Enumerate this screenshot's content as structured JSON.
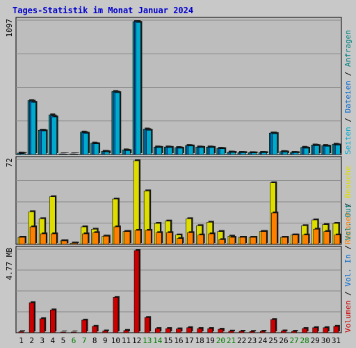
{
  "title": "Tages-Statistik im Monat Januar 2024",
  "colors": {
    "background": "#c8c8c8",
    "plot_bg": "#bdbdbd",
    "title": "#0000cc",
    "anfragen": "#008080",
    "dateien": "#0066cc",
    "seiten": "#00aacc",
    "besuche": "#dddd00",
    "rechner": "#ff8000",
    "vol_out": "#008080",
    "vol_in": "#0066cc",
    "volumen": "#cc0000",
    "weekend_label": "#008000",
    "weekday_label": "#000000"
  },
  "chart_data": [
    {
      "type": "bar",
      "panel": "requests",
      "ymax_label": "1097",
      "ylim": [
        0,
        1097
      ],
      "categories": [
        "1",
        "2",
        "3",
        "4",
        "5",
        "6",
        "7",
        "8",
        "9",
        "10",
        "11",
        "12",
        "13",
        "14",
        "15",
        "16",
        "17",
        "18",
        "19",
        "20",
        "21",
        "22",
        "23",
        "24",
        "25",
        "26",
        "27",
        "28",
        "29",
        "30",
        "31"
      ],
      "weekend_days": [
        "6",
        "7",
        "13",
        "14",
        "20",
        "21",
        "27",
        "28"
      ],
      "series": [
        {
          "name": "Anfragen",
          "values": [
            12,
            445,
            200,
            327,
            5,
            5,
            185,
            94,
            26,
            520,
            38,
            1097,
            210,
            62,
            62,
            57,
            74,
            62,
            62,
            51,
            20,
            17,
            15,
            17,
            177,
            24,
            17,
            59,
            78,
            74,
            85
          ]
        },
        {
          "name": "Dateien",
          "values": [
            10,
            440,
            200,
            318,
            5,
            5,
            180,
            90,
            25,
            515,
            35,
            1097,
            205,
            60,
            60,
            55,
            72,
            60,
            60,
            50,
            19,
            16,
            14,
            16,
            177,
            23,
            16,
            55,
            75,
            70,
            80
          ]
        },
        {
          "name": "Seiten",
          "values": [
            8,
            430,
            195,
            310,
            4,
            4,
            175,
            88,
            22,
            510,
            32,
            1090,
            200,
            58,
            58,
            52,
            70,
            58,
            58,
            48,
            17,
            15,
            13,
            15,
            172,
            20,
            15,
            52,
            73,
            68,
            78
          ]
        }
      ],
      "legend": [
        "Anfragen",
        "Dateien",
        "Seiten"
      ]
    },
    {
      "type": "bar",
      "panel": "visits",
      "ymax_label": "72",
      "ylim": [
        0,
        72
      ],
      "categories": [
        "1",
        "2",
        "3",
        "4",
        "5",
        "6",
        "7",
        "8",
        "9",
        "10",
        "11",
        "12",
        "13",
        "14",
        "15",
        "16",
        "17",
        "18",
        "19",
        "20",
        "21",
        "22",
        "23",
        "24",
        "25",
        "26",
        "27",
        "28",
        "29",
        "30",
        "31"
      ],
      "series": [
        {
          "name": "Besuche",
          "values": [
            6,
            28,
            22,
            41,
            3,
            1,
            15,
            13,
            7,
            39,
            11,
            72,
            46,
            18,
            20,
            8,
            22,
            16,
            19,
            11,
            7,
            6,
            6,
            11,
            53,
            6,
            8,
            16,
            21,
            17,
            18
          ]
        },
        {
          "name": "Rechner",
          "values": [
            6,
            15,
            9,
            9,
            3,
            1,
            9,
            10,
            7,
            15,
            11,
            12,
            12,
            10,
            10,
            5,
            10,
            8,
            9,
            4,
            6,
            6,
            6,
            11,
            27,
            6,
            8,
            8,
            13,
            11,
            8
          ]
        }
      ],
      "legend": [
        "Besuche",
        "Rechner"
      ]
    },
    {
      "type": "bar",
      "panel": "volume",
      "ymax_label": "4.77 MB",
      "ylim": [
        0,
        4.77
      ],
      "unit": "MB",
      "categories": [
        "1",
        "2",
        "3",
        "4",
        "5",
        "6",
        "7",
        "8",
        "9",
        "10",
        "11",
        "12",
        "13",
        "14",
        "15",
        "16",
        "17",
        "18",
        "19",
        "20",
        "21",
        "22",
        "23",
        "24",
        "25",
        "26",
        "27",
        "28",
        "29",
        "30",
        "31"
      ],
      "series": [
        {
          "name": "Volumen",
          "values": [
            0.06,
            1.74,
            0.81,
            1.32,
            0.04,
            0.04,
            0.73,
            0.37,
            0.1,
            2.05,
            0.13,
            4.77,
            0.88,
            0.24,
            0.24,
            0.22,
            0.29,
            0.24,
            0.24,
            0.2,
            0.09,
            0.08,
            0.07,
            0.08,
            0.76,
            0.1,
            0.08,
            0.24,
            0.29,
            0.29,
            0.37
          ]
        }
      ],
      "legend": [
        "Volumen",
        "Vol. In",
        "Vol. Out"
      ]
    }
  ]
}
